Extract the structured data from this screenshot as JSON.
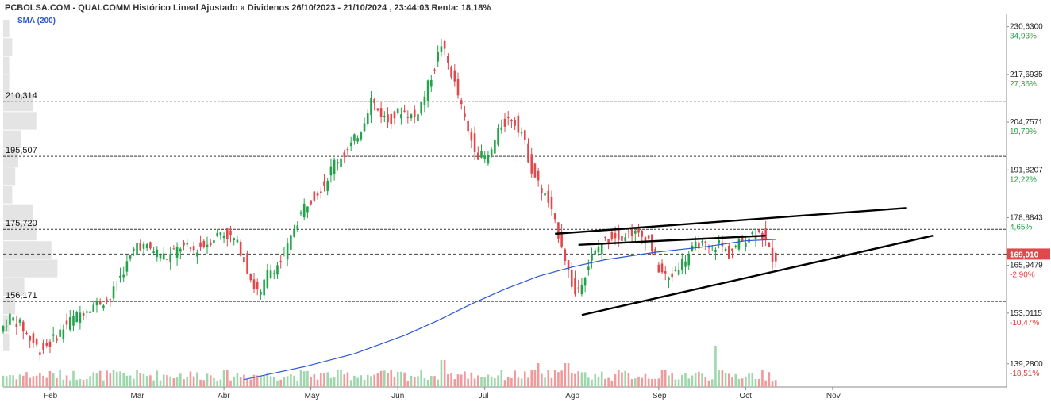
{
  "header": {
    "title": "PCBOLSA.COM - QUALCOMM Histórico Lineal Ajustado a Dividenos 26/10/2023 - 21/10/2024 , 23:44:03 Renta: 18,18%",
    "sma_label": "SMA (200)"
  },
  "colors": {
    "up": "#22a34a",
    "down": "#e0484b",
    "sma": "#2b57d6",
    "profile": "#e4e4e4",
    "last_price_bg": "#e0484b"
  },
  "chart_data": {
    "type": "candlestick",
    "title": "QUALCOMM Histórico Lineal Ajustado a Dividenos",
    "ylim": [
      133,
      234
    ],
    "x_domain": [
      0,
      300
    ],
    "months": [
      {
        "label": "Feb",
        "x": 14
      },
      {
        "label": "Mar",
        "x": 40
      },
      {
        "label": "Abr",
        "x": 66
      },
      {
        "label": "May",
        "x": 92
      },
      {
        "label": "Jun",
        "x": 118
      },
      {
        "label": "Jul",
        "x": 144
      },
      {
        "label": "Ago",
        "x": 170
      },
      {
        "label": "Sep",
        "x": 196
      },
      {
        "label": "Oct",
        "x": 222
      },
      {
        "label": "Nov",
        "x": 248
      }
    ],
    "y_ticks": [
      {
        "value": 230.63,
        "label": "230,6300",
        "pct": "34,93%",
        "dir": "pos"
      },
      {
        "value": 217.6935,
        "label": "217,6935",
        "pct": "27,36%",
        "dir": "pos"
      },
      {
        "value": 204.7571,
        "label": "204,7571",
        "pct": "19,79%",
        "dir": "pos"
      },
      {
        "value": 191.8207,
        "label": "191,8207",
        "pct": "12,22%",
        "dir": "pos"
      },
      {
        "value": 178.8843,
        "label": "178,8843",
        "pct": "4,65%",
        "dir": "pos"
      },
      {
        "value": 165.9479,
        "label": "165,9479",
        "pct": "-2,90%",
        "dir": "neg"
      },
      {
        "value": 153.0115,
        "label": "153,0115",
        "pct": "-10,47%",
        "dir": "neg"
      },
      {
        "value": 139.28,
        "label": "139,2800",
        "pct": "-18,51%",
        "dir": "neg"
      }
    ],
    "levels": [
      {
        "value": 210.314,
        "label": "210,314"
      },
      {
        "value": 195.507,
        "label": "195,507"
      },
      {
        "value": 175.72,
        "label": "175,720"
      },
      {
        "value": 156.171,
        "label": "156,171"
      },
      {
        "value": 143.0,
        "label": ""
      }
    ],
    "last_price": {
      "value": 169.01,
      "label": "169,010"
    },
    "price_path": [
      [
        0,
        148
      ],
      [
        3,
        152
      ],
      [
        6,
        150
      ],
      [
        9,
        146
      ],
      [
        12,
        143
      ],
      [
        15,
        145
      ],
      [
        18,
        148
      ],
      [
        21,
        151
      ],
      [
        24,
        153
      ],
      [
        27,
        155
      ],
      [
        30,
        156
      ],
      [
        33,
        157
      ],
      [
        36,
        163
      ],
      [
        39,
        168
      ],
      [
        41,
        172
      ],
      [
        43,
        171
      ],
      [
        46,
        170
      ],
      [
        50,
        168
      ],
      [
        54,
        171
      ],
      [
        58,
        170
      ],
      [
        62,
        172
      ],
      [
        66,
        175
      ],
      [
        70,
        173
      ],
      [
        72,
        170
      ],
      [
        74,
        165
      ],
      [
        76,
        160
      ],
      [
        78,
        158
      ],
      [
        80,
        164
      ],
      [
        83,
        166
      ],
      [
        85,
        168
      ],
      [
        88,
        176
      ],
      [
        91,
        182
      ],
      [
        94,
        185
      ],
      [
        97,
        188
      ],
      [
        100,
        194
      ],
      [
        104,
        197
      ],
      [
        108,
        203
      ],
      [
        111,
        211
      ],
      [
        113,
        208
      ],
      [
        116,
        205
      ],
      [
        120,
        208
      ],
      [
        124,
        206
      ],
      [
        127,
        212
      ],
      [
        130,
        220
      ],
      [
        132,
        226
      ],
      [
        135,
        218
      ],
      [
        137,
        212
      ],
      [
        140,
        202
      ],
      [
        143,
        196
      ],
      [
        146,
        195
      ],
      [
        150,
        204
      ],
      [
        153,
        206
      ],
      [
        156,
        202
      ],
      [
        159,
        192
      ],
      [
        161,
        188
      ],
      [
        164,
        183
      ],
      [
        166,
        177
      ],
      [
        168,
        172
      ],
      [
        170,
        164
      ],
      [
        172,
        158
      ],
      [
        174,
        162
      ],
      [
        177,
        168
      ],
      [
        180,
        172
      ],
      [
        183,
        174
      ],
      [
        186,
        174
      ],
      [
        189,
        175
      ],
      [
        191,
        174
      ],
      [
        194,
        173
      ],
      [
        197,
        165
      ],
      [
        200,
        162
      ],
      [
        203,
        166
      ],
      [
        206,
        169
      ],
      [
        209,
        172
      ],
      [
        212,
        170
      ],
      [
        215,
        172
      ],
      [
        218,
        169
      ],
      [
        221,
        172
      ],
      [
        224,
        174
      ],
      [
        227,
        176
      ],
      [
        229,
        172
      ],
      [
        231,
        168
      ]
    ],
    "sma_path": [
      [
        72,
        135
      ],
      [
        90,
        138.5
      ],
      [
        105,
        142
      ],
      [
        120,
        147
      ],
      [
        130,
        151
      ],
      [
        140,
        155.5
      ],
      [
        150,
        159.5
      ],
      [
        160,
        163
      ],
      [
        170,
        165.5
      ],
      [
        180,
        167.5
      ],
      [
        195,
        169.5
      ],
      [
        210,
        171
      ],
      [
        222,
        172.6
      ],
      [
        231,
        173
      ]
    ],
    "trend_lines": [
      [
        [
          165,
          174.5
        ],
        [
          270,
          181.5
        ]
      ],
      [
        [
          173,
          152.5
        ],
        [
          278,
          174
        ]
      ],
      [
        [
          172,
          171.5
        ],
        [
          228,
          174
        ]
      ]
    ],
    "volume_profile": [
      [
        230,
        2
      ],
      [
        225,
        3
      ],
      [
        220,
        2
      ],
      [
        215,
        2
      ],
      [
        210,
        10
      ],
      [
        205,
        11
      ],
      [
        200,
        6
      ],
      [
        195,
        5
      ],
      [
        190,
        4
      ],
      [
        185,
        3
      ],
      [
        180,
        10
      ],
      [
        175,
        11
      ],
      [
        170,
        16
      ],
      [
        165,
        18
      ],
      [
        160,
        7
      ],
      [
        155,
        4
      ],
      [
        150,
        2
      ],
      [
        145,
        2
      ]
    ]
  },
  "axis": {
    "month_labels": [
      "Feb",
      "Mar",
      "Abr",
      "May",
      "Jun",
      "Jul",
      "Ago",
      "Sep",
      "Oct",
      "Nov"
    ]
  }
}
